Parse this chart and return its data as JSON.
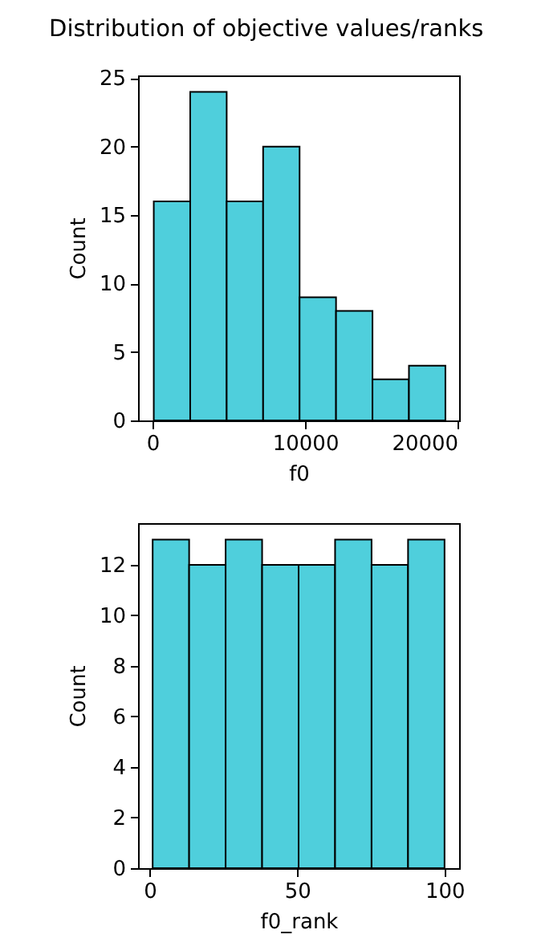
{
  "chart_data": [
    {
      "type": "histogram",
      "title": "Distribution of objective values/ranks",
      "xlabel": "f0",
      "ylabel": "Count",
      "color": "#4fcfdc",
      "bins": [
        80,
        2470,
        4860,
        7250,
        9640,
        12030,
        14420,
        16810,
        19200
      ],
      "values": [
        16,
        24,
        16,
        20,
        9,
        8,
        3,
        4
      ],
      "xlim": [
        -950,
        20100
      ],
      "ylim": [
        0,
        25.2
      ],
      "xticks": [
        0,
        10000,
        20000
      ],
      "yticks": [
        0,
        5,
        10,
        15,
        20,
        25
      ]
    },
    {
      "type": "histogram",
      "xlabel": "f0_rank",
      "ylabel": "Count",
      "color": "#4fcfdc",
      "bins": [
        1,
        13.375,
        25.75,
        38.125,
        50.5,
        62.875,
        75.25,
        87.625,
        100
      ],
      "values": [
        13,
        12,
        13,
        12,
        12,
        13,
        12,
        13
      ],
      "xlim": [
        -3.95,
        104.95
      ],
      "ylim": [
        0,
        13.65
      ],
      "xticks": [
        0,
        50,
        100
      ],
      "yticks": [
        0,
        2,
        4,
        6,
        8,
        10,
        12
      ]
    }
  ]
}
